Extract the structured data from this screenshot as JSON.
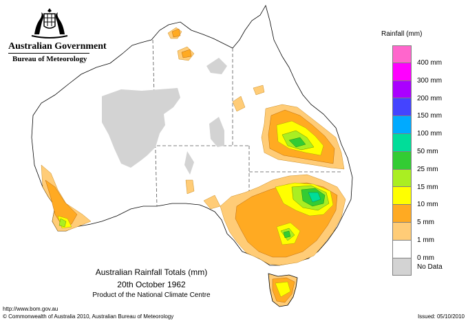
{
  "header": {
    "government": "Australian Government",
    "bureau": "Bureau of Meteorology"
  },
  "map": {
    "title": "Australian Rainfall Totals (mm)",
    "date": "20th October 1962",
    "product": "Product of the National Climate Centre"
  },
  "legend": {
    "title": "Rainfall (mm)",
    "items": [
      {
        "label": "400 mm",
        "color": "#ff66cc"
      },
      {
        "label": "300 mm",
        "color": "#ff00ff"
      },
      {
        "label": "200 mm",
        "color": "#aa00ff"
      },
      {
        "label": "150 mm",
        "color": "#4444ff"
      },
      {
        "label": "100 mm",
        "color": "#00aaff"
      },
      {
        "label": "50 mm",
        "color": "#00dd99"
      },
      {
        "label": "25 mm",
        "color": "#33cc33"
      },
      {
        "label": "15 mm",
        "color": "#aaee22"
      },
      {
        "label": "10 mm",
        "color": "#ffff00"
      },
      {
        "label": "5 mm",
        "color": "#ffaa22"
      },
      {
        "label": "1 mm",
        "color": "#ffcc77"
      },
      {
        "label": "0 mm",
        "color": "#ffffff"
      }
    ],
    "no_data": {
      "label": "No Data",
      "color": "#d3d3d3"
    }
  },
  "footer": {
    "url": "http://www.bom.gov.au",
    "copyright": "© Commonwealth of Australia 2010, Australian Bureau of Meteorology",
    "issued": "Issued: 05/10/2010"
  }
}
